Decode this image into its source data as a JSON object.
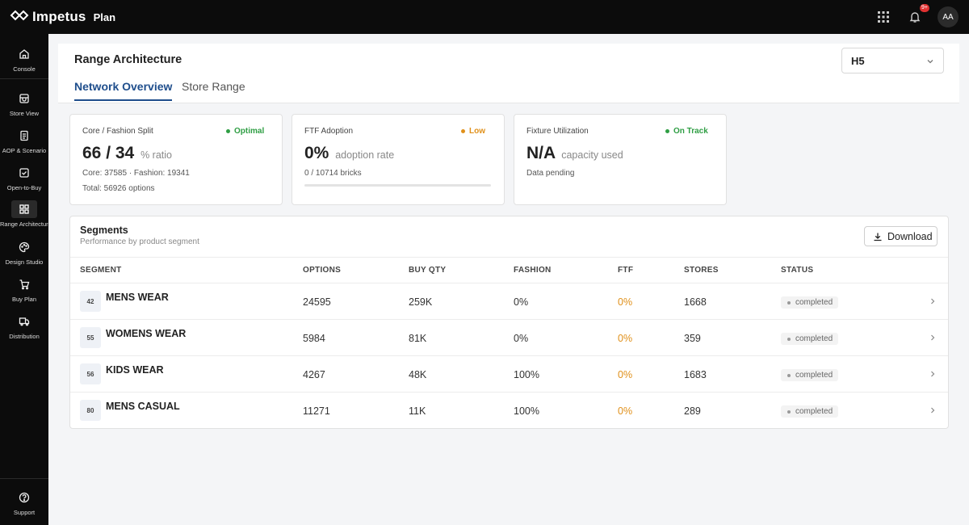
{
  "app": {
    "logo_text": "Impetus",
    "section": "Plan",
    "notification_badge": "9+",
    "avatar_initials": "AA"
  },
  "sidebar": {
    "items": [
      {
        "label": "Console",
        "icon": "home-icon"
      },
      {
        "label": "Store View",
        "icon": "store-icon"
      },
      {
        "label": "AOP & Scenario",
        "icon": "document-icon"
      },
      {
        "label": "Open-to-Buy",
        "icon": "calendar-check-icon"
      },
      {
        "label": "Range Architecture",
        "icon": "grid-icon",
        "active": true
      },
      {
        "label": "Design Studio",
        "icon": "palette-icon"
      },
      {
        "label": "Buy Plan",
        "icon": "cart-icon"
      },
      {
        "label": "Distribution",
        "icon": "truck-icon"
      }
    ],
    "support_label": "Support"
  },
  "header": {
    "title": "Range Architecture",
    "tabs": [
      {
        "label": "Network Overview",
        "active": true
      },
      {
        "label": "Store Range",
        "active": false
      }
    ],
    "select_value": "H5"
  },
  "kpis": [
    {
      "label": "Core / Fashion Split",
      "badge": "Optimal",
      "badge_color": "#2f9e44",
      "value": "66 / 34",
      "unit": "% ratio",
      "line1": "Core: 37585 · Fashion: 19341",
      "line2": "Total: 56926 options"
    },
    {
      "label": "FTF Adoption",
      "badge": "Low",
      "badge_color": "#e0901a",
      "value": "0%",
      "unit": "adoption rate",
      "line1": "0 / 10714 bricks",
      "progress": 0
    },
    {
      "label": "Fixture Utilization",
      "badge": "On Track",
      "badge_color": "#2f9e44",
      "value": "N/A",
      "unit": "capacity used",
      "line1": "Data pending"
    }
  ],
  "segments": {
    "title": "Segments",
    "subtitle": "Performance by product segment",
    "download_label": "Download",
    "columns": [
      "SEGMENT",
      "OPTIONS",
      "BUY QTY",
      "FASHION",
      "FTF",
      "STORES",
      "STATUS"
    ],
    "rows": [
      {
        "code": "42",
        "name": "MENS WEAR",
        "options": "24595",
        "buy_qty": "259K",
        "fashion": "0%",
        "ftf": "0%",
        "stores": "1668",
        "status": "completed"
      },
      {
        "code": "55",
        "name": "WOMENS WEAR",
        "options": "5984",
        "buy_qty": "81K",
        "fashion": "0%",
        "ftf": "0%",
        "stores": "359",
        "status": "completed"
      },
      {
        "code": "56",
        "name": "KIDS WEAR",
        "options": "4267",
        "buy_qty": "48K",
        "fashion": "100%",
        "ftf": "0%",
        "stores": "1683",
        "status": "completed"
      },
      {
        "code": "80",
        "name": "MENS CASUAL",
        "options": "11271",
        "buy_qty": "11K",
        "fashion": "100%",
        "ftf": "0%",
        "stores": "289",
        "status": "completed"
      }
    ]
  }
}
